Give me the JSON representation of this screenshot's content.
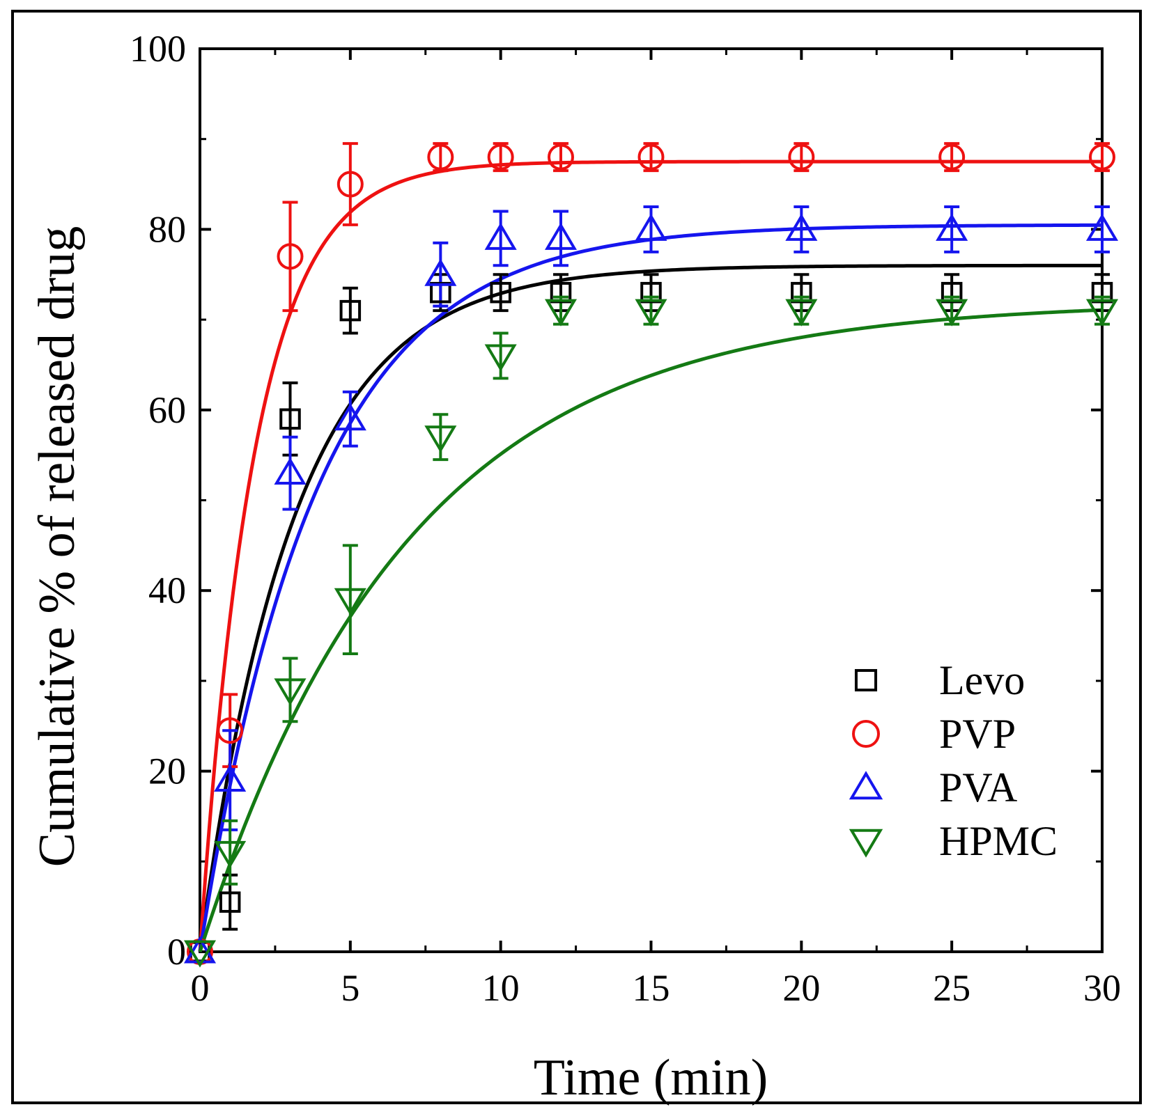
{
  "chart_data": {
    "type": "scatter",
    "title": "",
    "xlabel": "Time (min)",
    "ylabel": "Cumulative % of released drug",
    "xlim": [
      0,
      30
    ],
    "ylim": [
      0,
      100
    ],
    "x_ticks": [
      "0",
      "5",
      "10",
      "15",
      "20",
      "25",
      "30"
    ],
    "y_ticks": [
      "0",
      "20",
      "40",
      "60",
      "80",
      "100"
    ],
    "legend_position": "bottom-right",
    "x": [
      0,
      1,
      3,
      5,
      8,
      10,
      12,
      15,
      20,
      25,
      30
    ],
    "series": [
      {
        "name": "Levo",
        "marker": "square",
        "color": "#000000",
        "values": [
          0,
          5.5,
          59,
          71,
          73,
          73,
          73,
          73,
          73,
          73,
          73
        ],
        "error": [
          0,
          3,
          4,
          2.5,
          2,
          2,
          2,
          2,
          2,
          2,
          2
        ],
        "fit": {
          "plateau": 76,
          "k": 0.32
        }
      },
      {
        "name": "PVP",
        "marker": "circle",
        "color": "#ee1111",
        "values": [
          0,
          24.5,
          77,
          85,
          88,
          88,
          88,
          88,
          88,
          88,
          88
        ],
        "error": [
          0,
          4,
          6,
          4.5,
          1.5,
          1.5,
          1.5,
          1.5,
          1.5,
          1.5,
          1.5
        ],
        "fit": {
          "plateau": 87.5,
          "k": 0.55
        }
      },
      {
        "name": "PVA",
        "marker": "triangle-up",
        "color": "#1515ee",
        "values": [
          0,
          19,
          53,
          59,
          75,
          79,
          79,
          80,
          80,
          80,
          80
        ],
        "error": [
          0,
          5.5,
          4,
          3,
          3.5,
          3,
          3,
          2.5,
          2.5,
          2.5,
          2.5
        ],
        "fit": {
          "plateau": 80.5,
          "k": 0.26
        }
      },
      {
        "name": "HPMC",
        "marker": "triangle-down",
        "color": "#147a14",
        "values": [
          0,
          11,
          29,
          39,
          57,
          66,
          71,
          71,
          71,
          71,
          71
        ],
        "error": [
          0,
          3.5,
          3.5,
          6,
          2.5,
          2.5,
          1.5,
          1.5,
          1.5,
          1.5,
          1.5
        ],
        "fit": {
          "plateau": 72,
          "k": 0.145
        }
      }
    ]
  }
}
